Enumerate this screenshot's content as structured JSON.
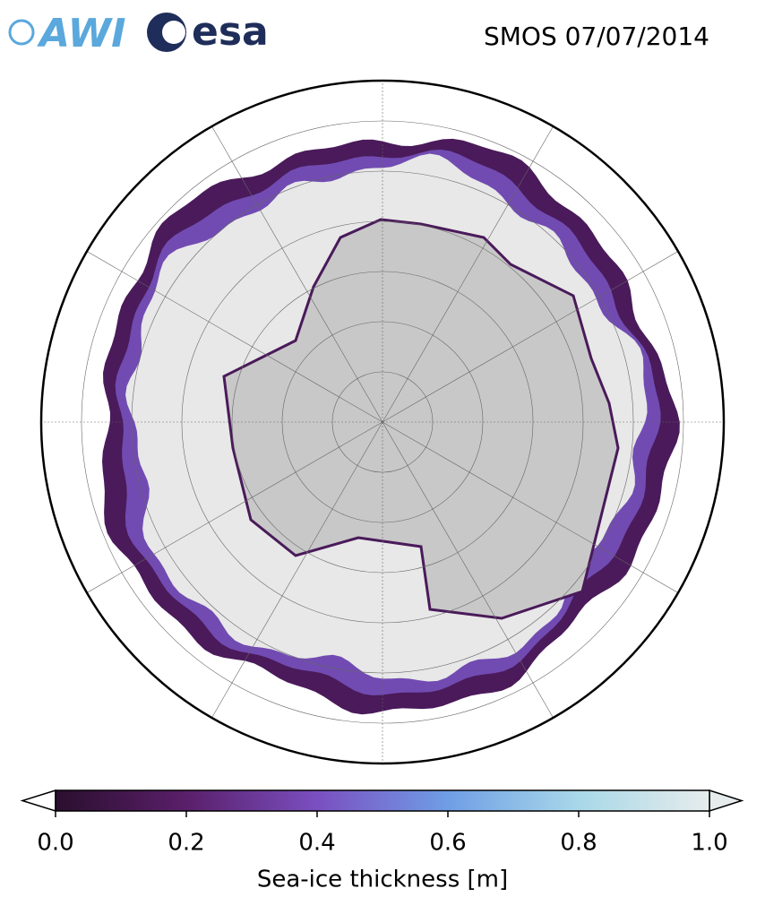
{
  "header": {
    "logos": [
      "AWI",
      "esa"
    ],
    "title": "SMOS 07/07/2014"
  },
  "colorbar": {
    "label": "Sea-ice thickness [m]",
    "lim": [
      0,
      1
    ],
    "ticks": [
      {
        "value": 0,
        "label": "0.0"
      },
      0.2,
      0.4,
      0.6,
      0.8,
      {
        "value": 1,
        "label": "1.0"
      }
    ],
    "colors": [
      "#2a0f2e",
      "#5a1f6a",
      "#7a4fc0",
      "#6f9ee6",
      "#a8d8e8",
      "#e6ecec"
    ]
  }
}
